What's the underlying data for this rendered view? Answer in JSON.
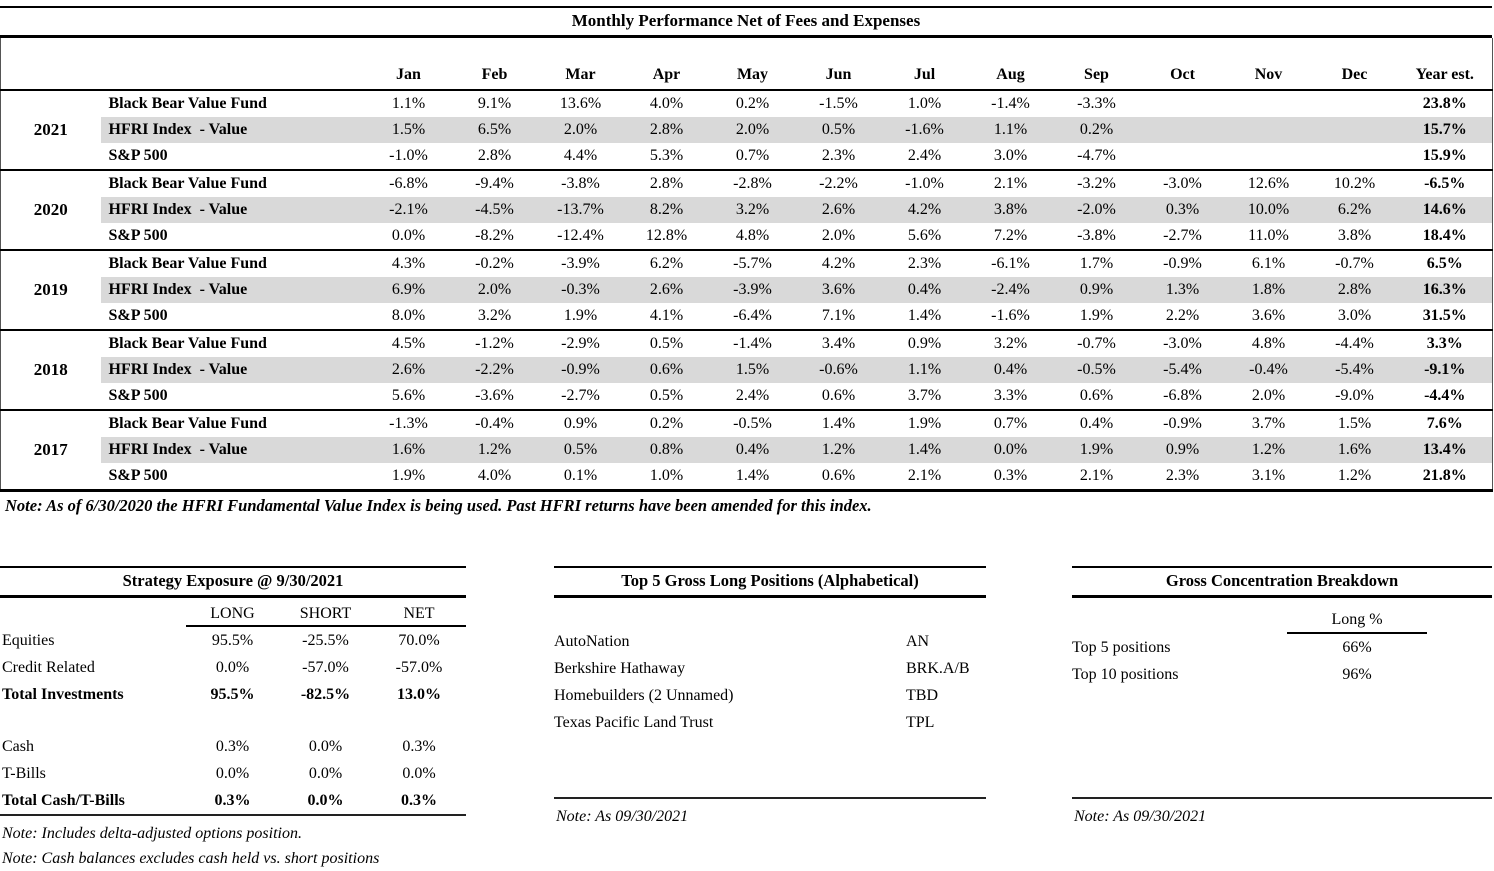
{
  "colors": {
    "row_shade": "#d9d9d9",
    "text": "#000000",
    "rule": "#000000"
  },
  "performance_table": {
    "title": "Monthly Performance Net of Fees and Expenses",
    "columns": [
      "Jan",
      "Feb",
      "Mar",
      "Apr",
      "May",
      "Jun",
      "Jul",
      "Aug",
      "Sep",
      "Oct",
      "Nov",
      "Dec",
      "Year est."
    ],
    "years": [
      {
        "year": "2021",
        "rows": [
          {
            "label": "Black Bear Value Fund",
            "shaded": false,
            "values": [
              "1.1%",
              "9.1%",
              "13.6%",
              "4.0%",
              "0.2%",
              "-1.5%",
              "1.0%",
              "-1.4%",
              "-3.3%",
              "",
              "",
              ""
            ],
            "year_est": "23.8%"
          },
          {
            "label": "HFRI Index  - Value",
            "shaded": true,
            "values": [
              "1.5%",
              "6.5%",
              "2.0%",
              "2.8%",
              "2.0%",
              "0.5%",
              "-1.6%",
              "1.1%",
              "0.2%",
              "",
              "",
              ""
            ],
            "year_est": "15.7%"
          },
          {
            "label": "S&P 500",
            "shaded": false,
            "values": [
              "-1.0%",
              "2.8%",
              "4.4%",
              "5.3%",
              "0.7%",
              "2.3%",
              "2.4%",
              "3.0%",
              "-4.7%",
              "",
              "",
              ""
            ],
            "year_est": "15.9%"
          }
        ]
      },
      {
        "year": "2020",
        "rows": [
          {
            "label": "Black Bear Value Fund",
            "shaded": false,
            "values": [
              "-6.8%",
              "-9.4%",
              "-3.8%",
              "2.8%",
              "-2.8%",
              "-2.2%",
              "-1.0%",
              "2.1%",
              "-3.2%",
              "-3.0%",
              "12.6%",
              "10.2%"
            ],
            "year_est": "-6.5%"
          },
          {
            "label": "HFRI Index  - Value",
            "shaded": true,
            "values": [
              "-2.1%",
              "-4.5%",
              "-13.7%",
              "8.2%",
              "3.2%",
              "2.6%",
              "4.2%",
              "3.8%",
              "-2.0%",
              "0.3%",
              "10.0%",
              "6.2%"
            ],
            "year_est": "14.6%"
          },
          {
            "label": "S&P 500",
            "shaded": false,
            "values": [
              "0.0%",
              "-8.2%",
              "-12.4%",
              "12.8%",
              "4.8%",
              "2.0%",
              "5.6%",
              "7.2%",
              "-3.8%",
              "-2.7%",
              "11.0%",
              "3.8%"
            ],
            "year_est": "18.4%"
          }
        ]
      },
      {
        "year": "2019",
        "rows": [
          {
            "label": "Black Bear Value Fund",
            "shaded": false,
            "values": [
              "4.3%",
              "-0.2%",
              "-3.9%",
              "6.2%",
              "-5.7%",
              "4.2%",
              "2.3%",
              "-6.1%",
              "1.7%",
              "-0.9%",
              "6.1%",
              "-0.7%"
            ],
            "year_est": "6.5%"
          },
          {
            "label": "HFRI Index  - Value",
            "shaded": true,
            "values": [
              "6.9%",
              "2.0%",
              "-0.3%",
              "2.6%",
              "-3.9%",
              "3.6%",
              "0.4%",
              "-2.4%",
              "0.9%",
              "1.3%",
              "1.8%",
              "2.8%"
            ],
            "year_est": "16.3%"
          },
          {
            "label": "S&P 500",
            "shaded": false,
            "values": [
              "8.0%",
              "3.2%",
              "1.9%",
              "4.1%",
              "-6.4%",
              "7.1%",
              "1.4%",
              "-1.6%",
              "1.9%",
              "2.2%",
              "3.6%",
              "3.0%"
            ],
            "year_est": "31.5%"
          }
        ]
      },
      {
        "year": "2018",
        "rows": [
          {
            "label": "Black Bear Value Fund",
            "shaded": false,
            "values": [
              "4.5%",
              "-1.2%",
              "-2.9%",
              "0.5%",
              "-1.4%",
              "3.4%",
              "0.9%",
              "3.2%",
              "-0.7%",
              "-3.0%",
              "4.8%",
              "-4.4%"
            ],
            "year_est": "3.3%"
          },
          {
            "label": "HFRI Index  - Value",
            "shaded": true,
            "values": [
              "2.6%",
              "-2.2%",
              "-0.9%",
              "0.6%",
              "1.5%",
              "-0.6%",
              "1.1%",
              "0.4%",
              "-0.5%",
              "-5.4%",
              "-0.4%",
              "-5.4%"
            ],
            "year_est": "-9.1%"
          },
          {
            "label": "S&P 500",
            "shaded": false,
            "values": [
              "5.6%",
              "-3.6%",
              "-2.7%",
              "0.5%",
              "2.4%",
              "0.6%",
              "3.7%",
              "3.3%",
              "0.6%",
              "-6.8%",
              "2.0%",
              "-9.0%"
            ],
            "year_est": "-4.4%"
          }
        ]
      },
      {
        "year": "2017",
        "rows": [
          {
            "label": "Black Bear Value Fund",
            "shaded": false,
            "values": [
              "-1.3%",
              "-0.4%",
              "0.9%",
              "0.2%",
              "-0.5%",
              "1.4%",
              "1.9%",
              "0.7%",
              "0.4%",
              "-0.9%",
              "3.7%",
              "1.5%"
            ],
            "year_est": "7.6%"
          },
          {
            "label": "HFRI Index  - Value",
            "shaded": true,
            "values": [
              "1.6%",
              "1.2%",
              "0.5%",
              "0.8%",
              "0.4%",
              "1.2%",
              "1.4%",
              "0.0%",
              "1.9%",
              "0.9%",
              "1.2%",
              "1.6%"
            ],
            "year_est": "13.4%"
          },
          {
            "label": "S&P 500",
            "shaded": false,
            "values": [
              "1.9%",
              "4.0%",
              "0.1%",
              "1.0%",
              "1.4%",
              "0.6%",
              "2.1%",
              "0.3%",
              "2.1%",
              "2.3%",
              "3.1%",
              "1.2%"
            ],
            "year_est": "21.8%"
          }
        ]
      }
    ],
    "note": "Note: As of 6/30/2020 the HFRI Fundamental Value Index is being used.  Past HFRI returns have been amended for this index."
  },
  "strategy_exposure": {
    "title": "Strategy Exposure @ 9/30/2021",
    "columns": [
      "LONG",
      "SHORT",
      "NET"
    ],
    "rows": [
      {
        "label": "Equities",
        "values": [
          "95.5%",
          "-25.5%",
          "70.0%"
        ],
        "bold": false,
        "spacer": false
      },
      {
        "label": "Credit Related",
        "values": [
          "0.0%",
          "-57.0%",
          "-57.0%"
        ],
        "bold": false,
        "spacer": false
      },
      {
        "label": "Total Investments",
        "values": [
          "95.5%",
          "-82.5%",
          "13.0%"
        ],
        "bold": true,
        "spacer": false
      },
      {
        "label": "",
        "values": [
          "",
          "",
          ""
        ],
        "bold": false,
        "spacer": true
      },
      {
        "label": "Cash",
        "values": [
          "0.3%",
          "0.0%",
          "0.3%"
        ],
        "bold": false,
        "spacer": false
      },
      {
        "label": "T-Bills",
        "values": [
          "0.0%",
          "0.0%",
          "0.0%"
        ],
        "bold": false,
        "spacer": false
      },
      {
        "label": "Total Cash/T-Bills",
        "values": [
          "0.3%",
          "0.0%",
          "0.3%"
        ],
        "bold": true,
        "spacer": false
      }
    ],
    "notes": [
      "Note: Includes delta-adjusted options position.",
      "Note: Cash balances excludes cash held vs. short positions"
    ]
  },
  "top_positions": {
    "title": "Top 5 Gross Long Positions (Alphabetical)",
    "rows": [
      {
        "name": "AutoNation",
        "ticker": "AN"
      },
      {
        "name": "Berkshire Hathaway",
        "ticker": "BRK.A/B"
      },
      {
        "name": "Homebuilders (2 Unnamed)",
        "ticker": "TBD"
      },
      {
        "name": "Texas Pacific Land Trust",
        "ticker": "TPL"
      }
    ],
    "note": "Note: As 09/30/2021"
  },
  "concentration": {
    "title": "Gross Concentration Breakdown",
    "column": "Long %",
    "rows": [
      {
        "label": "Top 5 positions",
        "value": "66%"
      },
      {
        "label": "Top 10 positions",
        "value": "96%"
      }
    ],
    "note": "Note: As 09/30/2021"
  }
}
